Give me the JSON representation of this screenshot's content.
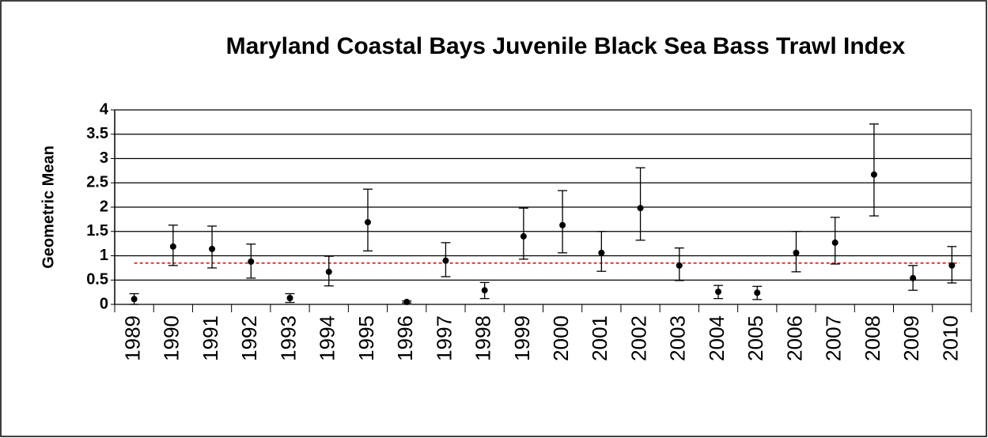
{
  "chart_data": {
    "type": "errorbar",
    "title": "Maryland Coastal Bays Juvenile Black Sea Bass Trawl Index",
    "y_label": "Geometric Mean",
    "categories": [
      "1989",
      "1990",
      "1991",
      "1992",
      "1993",
      "1994",
      "1995",
      "1996",
      "1997",
      "1998",
      "1999",
      "2000",
      "2001",
      "2002",
      "2003",
      "2004",
      "2005",
      "2006",
      "2007",
      "2008",
      "2009",
      "2010"
    ],
    "values": [
      0.11,
      1.19,
      1.14,
      0.88,
      0.13,
      0.67,
      1.69,
      0.05,
      0.9,
      0.29,
      1.4,
      1.63,
      1.06,
      1.98,
      0.8,
      0.26,
      0.24,
      1.06,
      1.27,
      2.67,
      0.54,
      0.8
    ],
    "lower": [
      0.0,
      0.8,
      0.75,
      0.54,
      0.04,
      0.38,
      1.1,
      0.03,
      0.57,
      0.12,
      0.93,
      1.06,
      0.68,
      1.32,
      0.49,
      0.12,
      0.1,
      0.67,
      0.83,
      1.82,
      0.29,
      0.44
    ],
    "upper": [
      0.22,
      1.63,
      1.61,
      1.24,
      0.22,
      0.99,
      2.37,
      0.07,
      1.27,
      0.45,
      1.98,
      2.34,
      1.5,
      2.81,
      1.16,
      0.39,
      0.37,
      1.5,
      1.79,
      3.71,
      0.8,
      1.19
    ],
    "color": "#000000",
    "reference_line": 0.85,
    "reference_color": "#e00000",
    "ylim": [
      0,
      4
    ],
    "yticks": [
      0,
      0.5,
      1,
      1.5,
      2,
      2.5,
      3,
      3.5,
      4
    ],
    "grid": true
  }
}
